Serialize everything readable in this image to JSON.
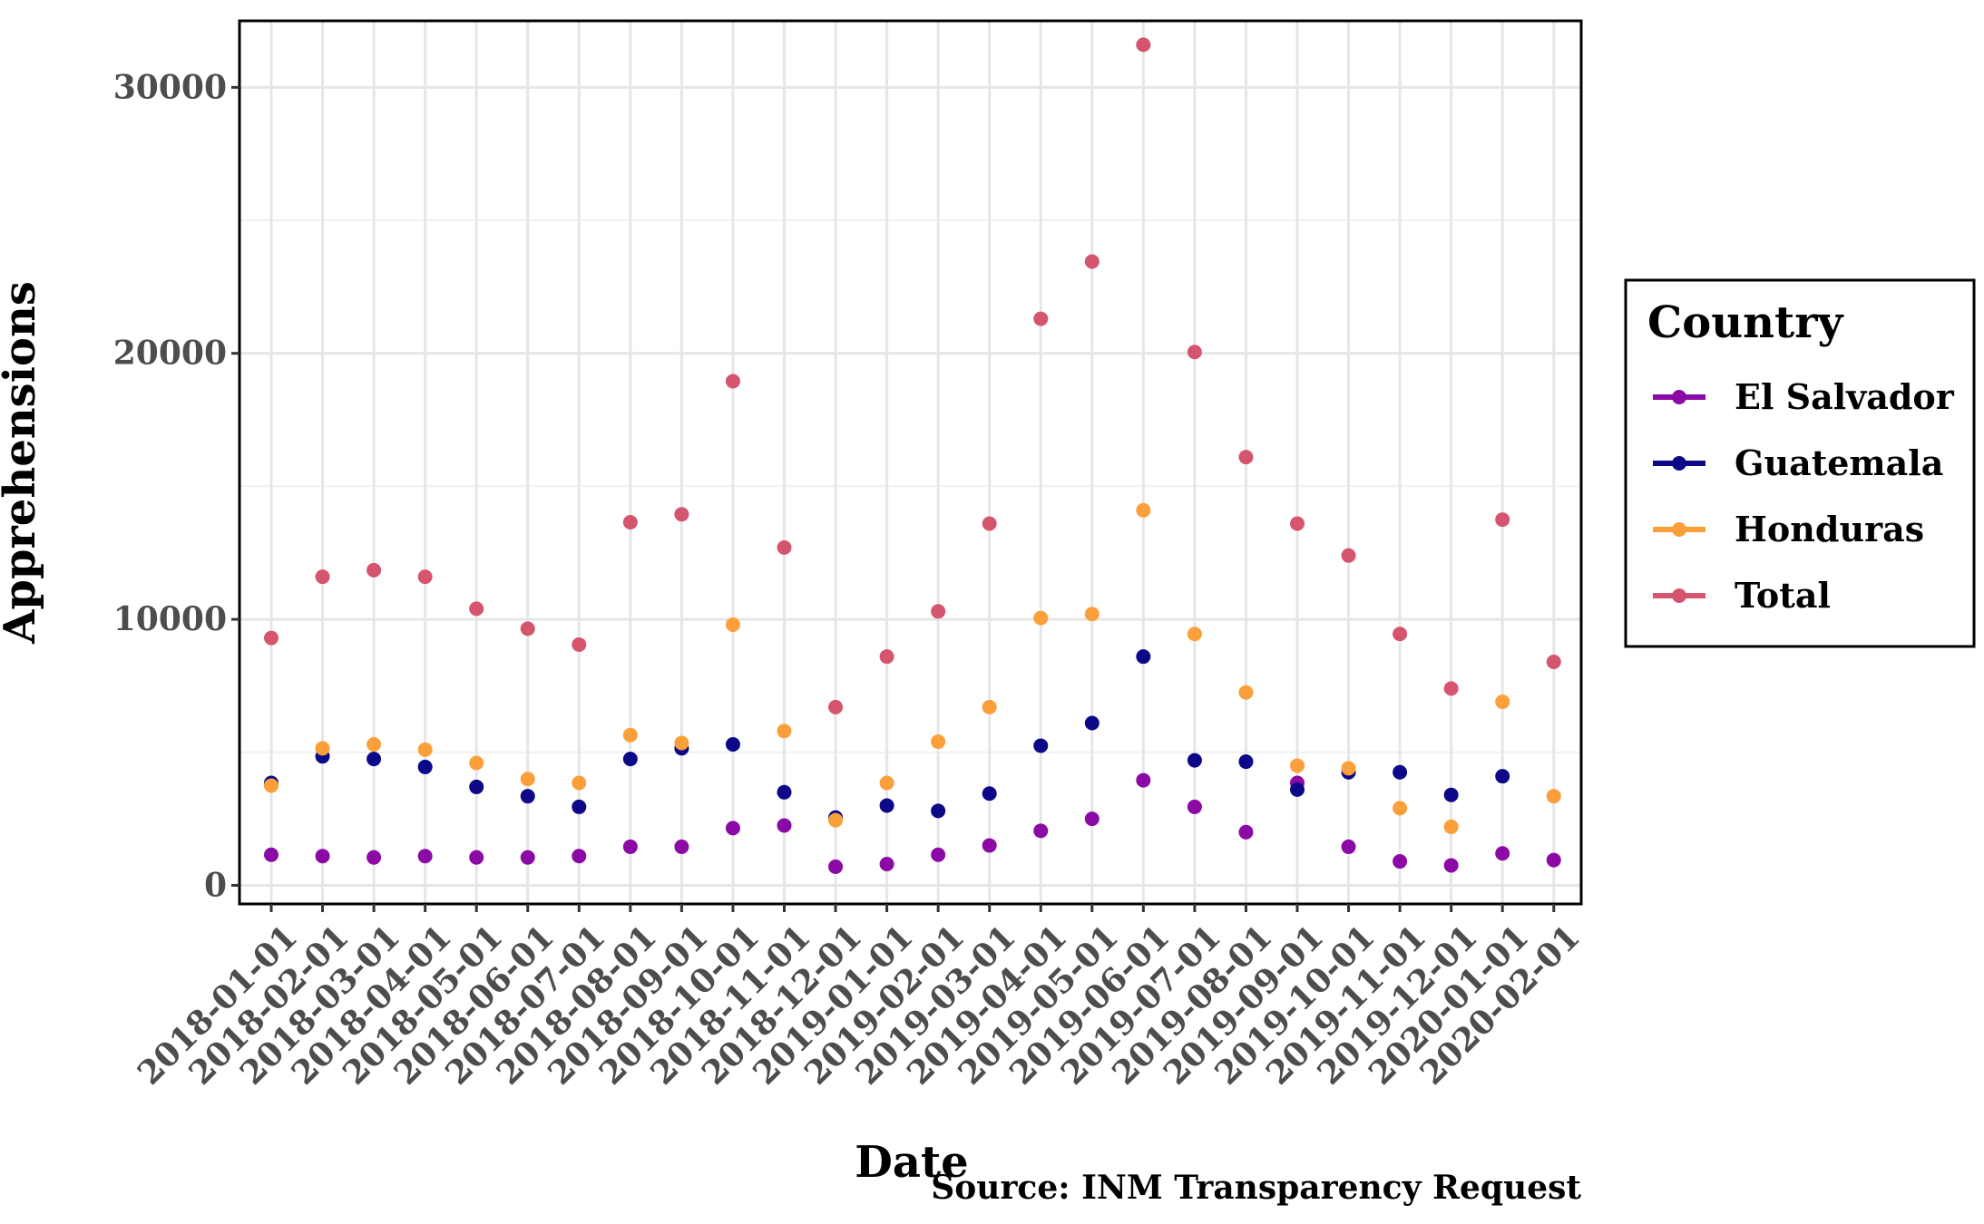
{
  "chart_data": {
    "type": "scatter",
    "xlabel": "Date",
    "ylabel": "Apprehensions",
    "caption": "Source: INM Transparency Request",
    "ylim": [
      -700,
      32500
    ],
    "y_ticks": [
      0,
      10000,
      20000,
      30000
    ],
    "y_tick_labels": [
      "0",
      "10000",
      "20000",
      "30000"
    ],
    "grid": true,
    "legend": {
      "title": "Country",
      "position": "right"
    },
    "x": [
      "2018-01-01",
      "2018-02-01",
      "2018-03-01",
      "2018-04-01",
      "2018-05-01",
      "2018-06-01",
      "2018-07-01",
      "2018-08-01",
      "2018-09-01",
      "2018-10-01",
      "2018-11-01",
      "2018-12-01",
      "2019-01-01",
      "2019-02-01",
      "2019-03-01",
      "2019-04-01",
      "2019-05-01",
      "2019-06-01",
      "2019-07-01",
      "2019-08-01",
      "2019-09-01",
      "2019-10-01",
      "2019-11-01",
      "2019-12-01",
      "2020-01-01",
      "2020-02-01"
    ],
    "series": [
      {
        "name": "El Salvador",
        "color": "#8b0aa5",
        "values": [
          1150,
          1100,
          1050,
          1100,
          1050,
          1050,
          1100,
          1450,
          1450,
          2150,
          2250,
          700,
          800,
          1150,
          1500,
          2050,
          2500,
          3950,
          2950,
          2000,
          3850,
          1450,
          900,
          750,
          1200,
          950
        ]
      },
      {
        "name": "Guatemala",
        "color": "#0d0887",
        "values": [
          3850,
          4850,
          4750,
          4450,
          3700,
          3350,
          2950,
          4750,
          5150,
          5300,
          3500,
          2550,
          3000,
          2800,
          3450,
          5250,
          6100,
          8600,
          4700,
          4650,
          3600,
          4250,
          4250,
          3400,
          4100,
          null
        ]
      },
      {
        "name": "Honduras",
        "color": "#fb9f3a",
        "values": [
          3750,
          5150,
          5300,
          5100,
          4600,
          4000,
          3850,
          5650,
          5350,
          9800,
          5800,
          2450,
          3850,
          5400,
          6700,
          10050,
          10200,
          14100,
          9450,
          7250,
          4500,
          4400,
          2900,
          2200,
          6900,
          3350
        ]
      },
      {
        "name": "Total",
        "color": "#d5546e",
        "values": [
          9300,
          11600,
          11850,
          11600,
          10400,
          9650,
          9050,
          13650,
          13950,
          18950,
          12700,
          6700,
          8600,
          10300,
          13600,
          21300,
          23450,
          31600,
          20050,
          16100,
          13600,
          12400,
          9450,
          7400,
          13750,
          8400
        ]
      }
    ]
  }
}
